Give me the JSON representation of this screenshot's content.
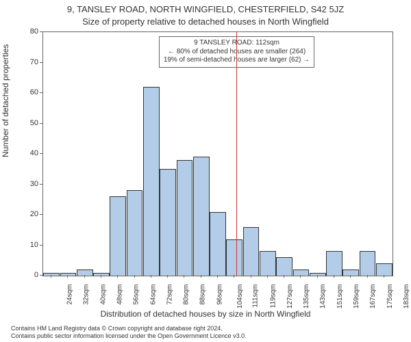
{
  "title_line1": "9, TANSLEY ROAD, NORTH WINGFIELD, CHESTERFIELD, S42 5JZ",
  "title_line2": "Size of property relative to detached houses in North Wingfield",
  "ylabel": "Number of detached properties",
  "xlabel": "Distribution of detached houses by size in North Wingfield",
  "attribution_line1": "Contains HM Land Registry data © Crown copyright and database right 2024.",
  "attribution_line2": "Contains public sector information licensed under the Open Government Licence v3.0.",
  "chart": {
    "type": "histogram",
    "ylim": [
      0,
      80
    ],
    "yticks": [
      0,
      10,
      20,
      30,
      40,
      50,
      60,
      70,
      80
    ],
    "bar_color": "#b3cde8",
    "bar_border": "#333333",
    "refline_color": "#cc3333",
    "refline_value": 112,
    "background": "#ffffff",
    "categories": [
      "24sqm",
      "32sqm",
      "40sqm",
      "48sqm",
      "56sqm",
      "64sqm",
      "72sqm",
      "80sqm",
      "88sqm",
      "96sqm",
      "104sqm",
      "111sqm",
      "119sqm",
      "127sqm",
      "135sqm",
      "143sqm",
      "151sqm",
      "159sqm",
      "167sqm",
      "175sqm",
      "183sqm"
    ],
    "values": [
      1,
      1,
      2,
      1,
      26,
      28,
      62,
      35,
      38,
      39,
      21,
      12,
      16,
      8,
      6,
      2,
      1,
      8,
      2,
      8,
      4
    ]
  },
  "annotation": {
    "line1": "9 TANSLEY ROAD: 112sqm",
    "line2": "← 80% of detached houses are smaller (264)",
    "line3": "19% of semi-detached houses are larger (62) →"
  }
}
